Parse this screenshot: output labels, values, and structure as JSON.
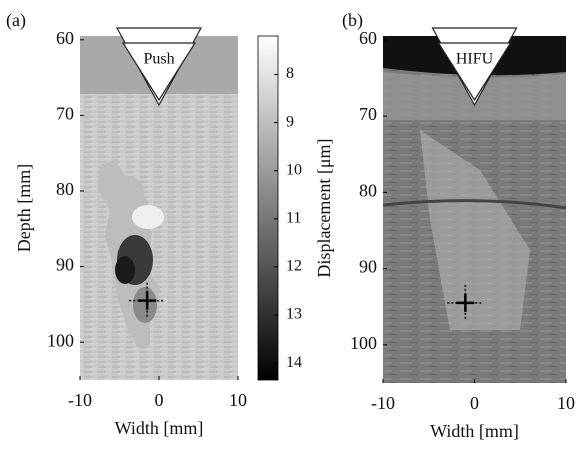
{
  "chart_data": [
    {
      "type": "image",
      "panel_label": "(a)",
      "transducer_label": "Push",
      "xlabel": "Width [mm]",
      "ylabel": "Depth [mm]",
      "xlim": [
        -10,
        10
      ],
      "xticks": [
        -10,
        0,
        10
      ],
      "ylim": [
        59.5,
        105
      ],
      "yticks": [
        60,
        70,
        80,
        90,
        100
      ],
      "focus": {
        "x": -1.5,
        "y": 94.5
      },
      "colorbar": {
        "label": "Displacement [μm]",
        "lim": [
          7.2,
          14.35
        ],
        "ticks": [
          8,
          9,
          10,
          11,
          12,
          13,
          14
        ],
        "colormap": [
          "#ffffff",
          "#000000"
        ]
      }
    },
    {
      "type": "image",
      "panel_label": "(b)",
      "transducer_label": "HIFU",
      "xlabel": "Width [mm]",
      "ylabel": null,
      "xlim": [
        -10,
        10
      ],
      "xticks": [
        -10,
        0,
        10
      ],
      "ylim": [
        59.5,
        105
      ],
      "yticks": [
        60,
        70,
        80,
        90,
        100
      ],
      "focus": {
        "x": -1,
        "y": 94.5
      }
    }
  ]
}
